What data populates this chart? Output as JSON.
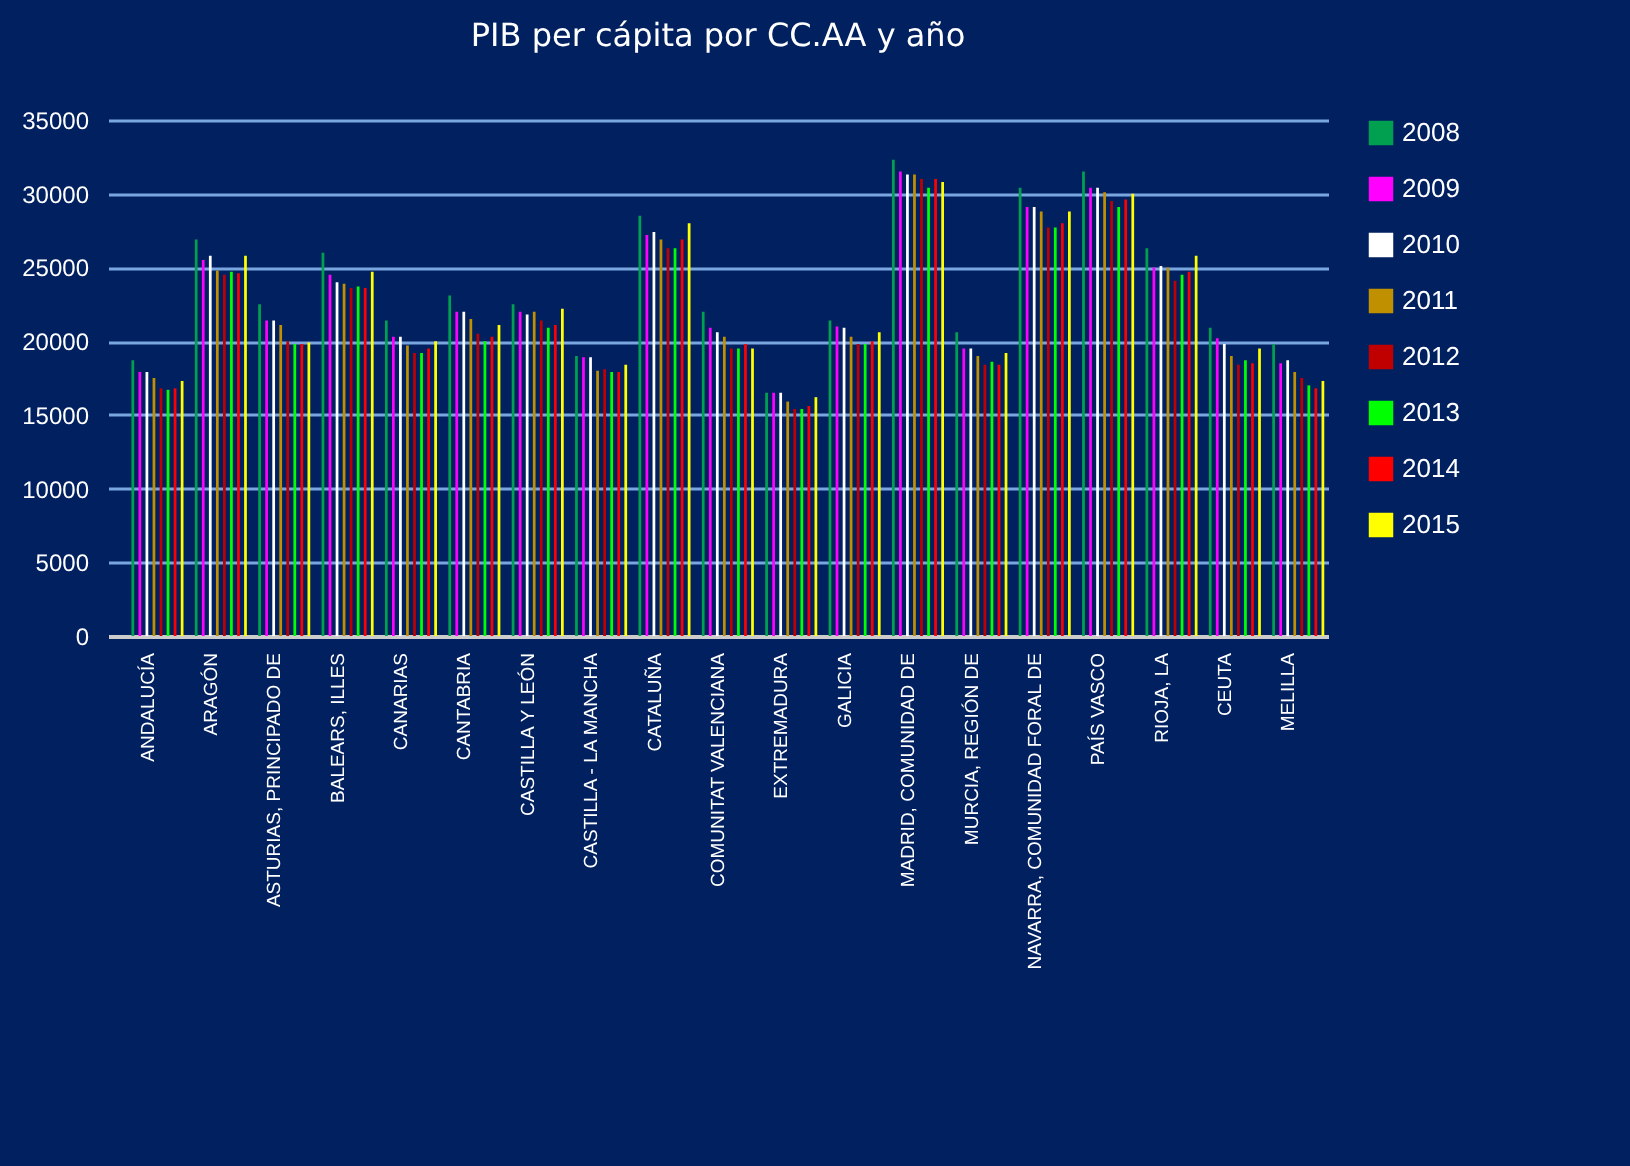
{
  "chart_data": {
    "type": "bar",
    "title": "PIB per cápita por CC.AA y año",
    "categories": [
      "ANDALUCÍA",
      "ARAGÓN",
      "ASTURIAS, PRINCIPADO DE",
      "BALEARS, ILLES",
      "CANARIAS",
      "CANTABRIA",
      "CASTILLA Y LEÓN",
      "CASTILLA - LA MANCHA",
      "CATALUÑA",
      "COMUNITAT VALENCIANA",
      "EXTREMADURA",
      "GALICIA",
      "MADRID, COMUNIDAD DE",
      "MURCIA, REGIÓN DE",
      "NAVARRA, COMUNIDAD FORAL DE",
      "PAÍS VASCO",
      "RIOJA, LA",
      "CEUTA",
      "MELILLA"
    ],
    "series": [
      {
        "name": "2008",
        "color": "#00a050",
        "values": [
          18700,
          26900,
          22500,
          26000,
          21400,
          23100,
          22500,
          19000,
          28500,
          22000,
          16500,
          21400,
          32300,
          20600,
          30400,
          31500,
          26300,
          20900,
          19800
        ]
      },
      {
        "name": "2009",
        "color": "#ff00ff",
        "values": [
          17900,
          25500,
          21400,
          24500,
          20300,
          22000,
          22000,
          18900,
          27200,
          20900,
          16500,
          21000,
          31500,
          19500,
          29100,
          30400,
          25000,
          20200,
          18500
        ]
      },
      {
        "name": "2010",
        "color": "#ffffff",
        "values": [
          17900,
          25800,
          21400,
          24000,
          20300,
          22000,
          21800,
          18900,
          27400,
          20600,
          16500,
          20900,
          31300,
          19500,
          29100,
          30400,
          25100,
          19800,
          18700
        ]
      },
      {
        "name": "2011",
        "color": "#c09000",
        "values": [
          17500,
          24800,
          21100,
          23900,
          19700,
          21500,
          22000,
          18000,
          26900,
          20300,
          15900,
          20300,
          31300,
          19000,
          28800,
          30100,
          25000,
          19000,
          17900
        ]
      },
      {
        "name": "2012",
        "color": "#c00000",
        "values": [
          16800,
          24500,
          20000,
          23600,
          19200,
          20500,
          21400,
          18100,
          26300,
          19500,
          15400,
          19800,
          31000,
          18400,
          27700,
          29500,
          24100,
          18400,
          17500
        ]
      },
      {
        "name": "2013",
        "color": "#00ff00",
        "values": [
          16700,
          24700,
          19800,
          23700,
          19200,
          20000,
          20900,
          17900,
          26300,
          19500,
          15400,
          19800,
          30400,
          18600,
          27700,
          29100,
          24500,
          18700,
          17000
        ]
      },
      {
        "name": "2014",
        "color": "#ff0000",
        "values": [
          16800,
          24600,
          19800,
          23600,
          19500,
          20300,
          21100,
          17900,
          26900,
          19800,
          15600,
          20000,
          31000,
          18400,
          28000,
          29600,
          24700,
          18500,
          16800
        ]
      },
      {
        "name": "2015",
        "color": "#ffff00",
        "values": [
          17300,
          25800,
          19900,
          24700,
          20000,
          21100,
          22200,
          18400,
          28000,
          19500,
          16200,
          20600,
          30800,
          19200,
          28800,
          30000,
          25800,
          19500,
          17300
        ]
      }
    ],
    "ylim": [
      0,
      35000
    ],
    "yticks": [
      0,
      5000,
      10000,
      15000,
      20000,
      25000,
      30000,
      35000
    ],
    "grid": "y",
    "legend": "right"
  }
}
